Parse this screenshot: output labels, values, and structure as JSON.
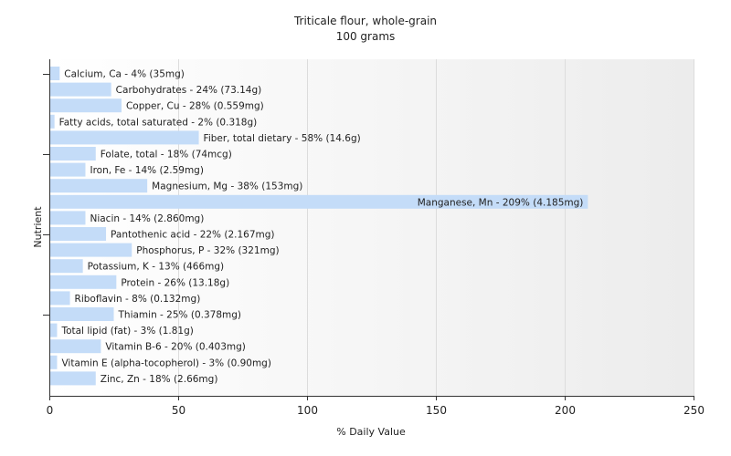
{
  "chart_data": {
    "type": "bar",
    "orientation": "horizontal",
    "title": "Triticale flour, whole-grain",
    "subtitle": "100 grams",
    "xlabel": "% Daily Value",
    "ylabel": "Nutrient",
    "xlim": [
      0,
      250
    ],
    "xticks": [
      0,
      50,
      100,
      150,
      200,
      250
    ],
    "grid": true,
    "bar_color": "#c4dcf8",
    "categories": [
      "Calcium, Ca",
      "Carbohydrates",
      "Copper, Cu",
      "Fatty acids, total saturated",
      "Fiber, total dietary",
      "Folate, total",
      "Iron, Fe",
      "Magnesium, Mg",
      "Manganese, Mn",
      "Niacin",
      "Pantothenic acid",
      "Phosphorus, P",
      "Potassium, K",
      "Protein",
      "Riboflavin",
      "Thiamin",
      "Total lipid (fat)",
      "Vitamin B-6",
      "Vitamin E (alpha-tocopherol)",
      "Zinc, Zn"
    ],
    "values": [
      4,
      24,
      28,
      2,
      58,
      18,
      14,
      38,
      209,
      14,
      22,
      32,
      13,
      26,
      8,
      25,
      3,
      20,
      3,
      18
    ],
    "labels": [
      "Calcium, Ca - 4% (35mg)",
      "Carbohydrates - 24% (73.14g)",
      "Copper, Cu - 28% (0.559mg)",
      "Fatty acids, total saturated - 2% (0.318g)",
      "Fiber, total dietary - 58% (14.6g)",
      "Folate, total - 18% (74mcg)",
      "Iron, Fe - 14% (2.59mg)",
      "Magnesium, Mg - 38% (153mg)",
      "Manganese, Mn - 209% (4.185mg)",
      "Niacin - 14% (2.860mg)",
      "Pantothenic acid - 22% (2.167mg)",
      "Phosphorus, P - 32% (321mg)",
      "Potassium, K - 13% (466mg)",
      "Protein - 26% (13.18g)",
      "Riboflavin - 8% (0.132mg)",
      "Thiamin - 25% (0.378mg)",
      "Total lipid (fat) - 3% (1.81g)",
      "Vitamin B-6 - 20% (0.403mg)",
      "Vitamin E (alpha-tocopherol) - 3% (0.90mg)",
      "Zinc, Zn - 18% (2.66mg)"
    ]
  }
}
